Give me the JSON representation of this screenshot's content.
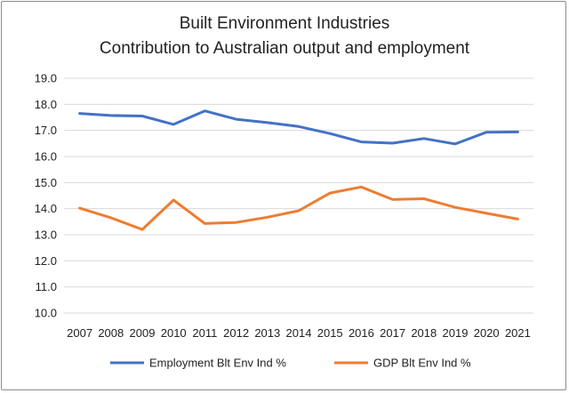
{
  "chart_data": {
    "type": "line",
    "title": "Built Environment Industries",
    "subtitle": "Contribution to Australian output and employment",
    "xlabel": "",
    "ylabel": "",
    "categories": [
      "2007",
      "2008",
      "2009",
      "2010",
      "2011",
      "2012",
      "2013",
      "2014",
      "2015",
      "2016",
      "2017",
      "2018",
      "2019",
      "2020",
      "2021"
    ],
    "ylim": [
      10.0,
      19.0
    ],
    "yticks": [
      "10.0",
      "11.0",
      "12.0",
      "13.0",
      "14.0",
      "15.0",
      "16.0",
      "17.0",
      "18.0",
      "19.0"
    ],
    "grid": true,
    "legend_position": "bottom",
    "series": [
      {
        "name": "Employment Blt Env Ind %",
        "color": "#4472c4",
        "values": [
          17.65,
          17.57,
          17.55,
          17.23,
          17.75,
          17.43,
          17.3,
          17.15,
          16.88,
          16.56,
          16.51,
          16.69,
          16.48,
          16.93,
          16.94
        ]
      },
      {
        "name": "GDP Blt Env Ind %",
        "color": "#ed7d31",
        "values": [
          14.02,
          13.65,
          13.2,
          14.33,
          13.43,
          13.47,
          13.67,
          13.92,
          14.6,
          14.83,
          14.35,
          14.38,
          14.05,
          13.82,
          13.6
        ]
      }
    ]
  }
}
